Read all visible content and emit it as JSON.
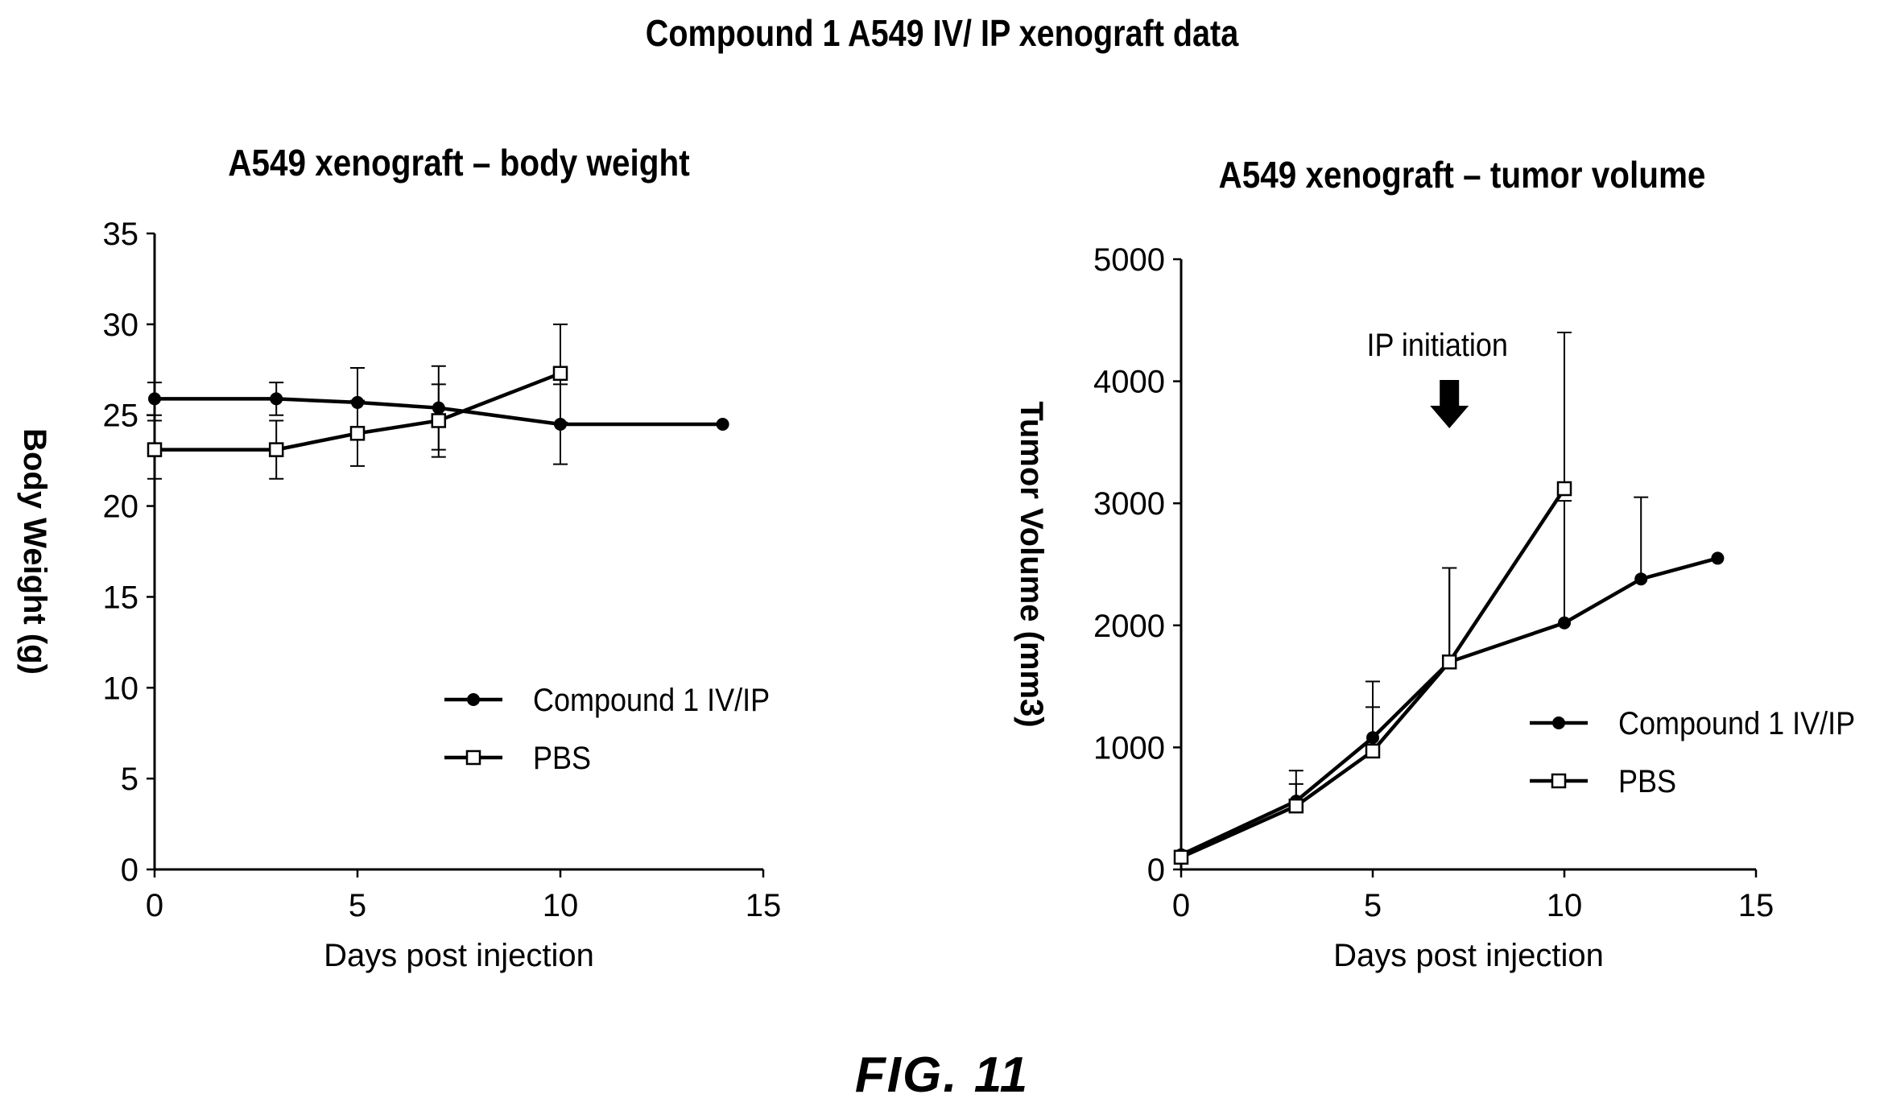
{
  "figure": {
    "title": "Compound 1 A549 IV/ IP xenograft data",
    "caption": "FIG.  11"
  },
  "chart_data": [
    {
      "type": "line",
      "title": "A549 xenograft – body weight",
      "xlabel": "Days post injection",
      "ylabel": "Body Weight (g)",
      "xlim": [
        0,
        15
      ],
      "ylim": [
        0,
        35
      ],
      "xticks": [
        0,
        5,
        10,
        15
      ],
      "yticks": [
        0,
        5,
        10,
        15,
        20,
        25,
        30,
        35
      ],
      "grid": false,
      "legend_position": "center-right",
      "series": [
        {
          "name": "Compound 1 IV/IP",
          "marker": "filled-circle",
          "x": [
            0,
            3,
            5,
            7,
            10,
            14
          ],
          "y": [
            25.9,
            25.9,
            25.7,
            25.4,
            24.5,
            24.5
          ],
          "err": [
            0.9,
            0.9,
            1.9,
            2.3,
            2.2,
            0
          ]
        },
        {
          "name": "PBS",
          "marker": "open-square",
          "x": [
            0,
            3,
            5,
            7,
            10
          ],
          "y": [
            23.1,
            23.1,
            24.0,
            24.7,
            27.3
          ],
          "err": [
            1.6,
            1.6,
            1.8,
            2.0,
            2.7
          ]
        }
      ]
    },
    {
      "type": "line",
      "title": "A549 xenograft – tumor volume",
      "xlabel": "Days post injection",
      "ylabel": "Tumor Volume (mm3)",
      "xlim": [
        0,
        15
      ],
      "ylim": [
        0,
        5000
      ],
      "xticks": [
        0,
        5,
        10,
        15
      ],
      "yticks": [
        0,
        1000,
        2000,
        3000,
        4000,
        5000
      ],
      "grid": false,
      "legend_position": "center-right",
      "annotation": {
        "text": "IP initiation",
        "x": 7
      },
      "series": [
        {
          "name": "Compound 1 IV/IP",
          "marker": "filled-circle",
          "x": [
            0,
            3,
            5,
            7,
            10,
            12,
            14
          ],
          "y": [
            120,
            560,
            1080,
            1700,
            2020,
            2380,
            2550
          ],
          "err_up": [
            0,
            250,
            460,
            770,
            1000,
            670,
            0
          ]
        },
        {
          "name": "PBS",
          "marker": "open-square",
          "x": [
            0,
            3,
            5,
            7,
            10
          ],
          "y": [
            100,
            520,
            970,
            1700,
            3120
          ],
          "err_up": [
            0,
            180,
            360,
            770,
            1280
          ]
        }
      ]
    }
  ]
}
